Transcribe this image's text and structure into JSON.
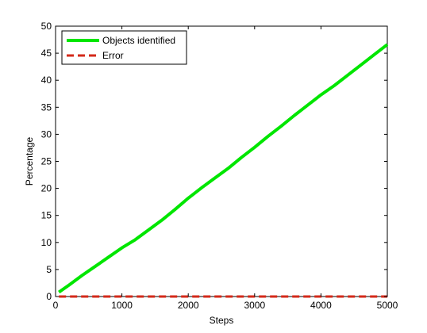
{
  "chart_data": {
    "type": "line",
    "xlabel": "Steps",
    "ylabel": "Percentage",
    "xlim": [
      0,
      5000
    ],
    "ylim": [
      0,
      50
    ],
    "xticks": [
      0,
      1000,
      2000,
      3000,
      4000,
      5000
    ],
    "yticks": [
      0,
      5,
      10,
      15,
      20,
      25,
      30,
      35,
      40,
      45,
      50
    ],
    "grid": false,
    "legend_position": "top-left",
    "series": [
      {
        "name": "Objects identified",
        "color": "#00e600",
        "style": "solid",
        "x": [
          50,
          200,
          400,
          600,
          800,
          1000,
          1200,
          1400,
          1600,
          1800,
          2000,
          2200,
          2400,
          2600,
          2800,
          3000,
          3200,
          3400,
          3600,
          3800,
          4000,
          4200,
          4400,
          4600,
          4800,
          5000
        ],
        "y": [
          0.8,
          2.1,
          3.9,
          5.6,
          7.3,
          9.0,
          10.5,
          12.3,
          14.1,
          16.1,
          18.2,
          20.1,
          21.9,
          23.7,
          25.7,
          27.6,
          29.6,
          31.5,
          33.5,
          35.4,
          37.3,
          39.0,
          40.9,
          42.8,
          44.7,
          46.6
        ]
      },
      {
        "name": "Error",
        "color": "#d42a1a",
        "style": "dashed",
        "x": [
          50,
          5000
        ],
        "y": [
          0,
          0
        ]
      }
    ]
  }
}
